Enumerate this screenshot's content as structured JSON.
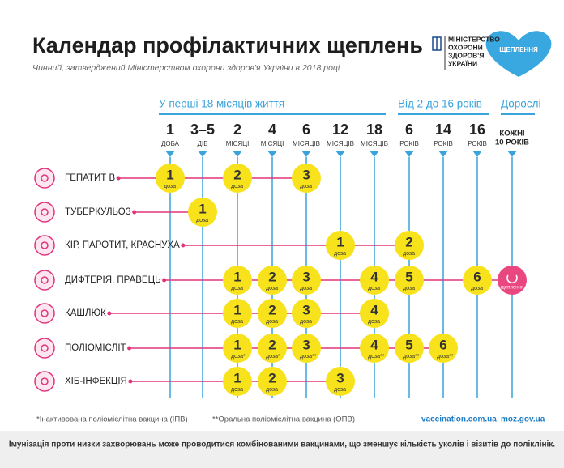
{
  "header": {
    "title": "Календар профілактичних щеплень",
    "subtitle": "Чинний, затверджений Міністерством охорони здоров'я України в 2018 році",
    "ministry": [
      "МІНІСТЕРСТВО",
      "ОХОРОНИ",
      "ЗДОРОВ'Я",
      "УКРАЇНИ"
    ],
    "badge": "ЩЕПЛЕННЯ"
  },
  "groups": [
    {
      "label": "У перші 18 місяців життя",
      "columns": [
        {
          "number": "1",
          "unit": "ДОБА"
        },
        {
          "number": "3–5",
          "unit": "ДІБ"
        },
        {
          "number": "2",
          "unit": "МІСЯЦІ"
        },
        {
          "number": "4",
          "unit": "МІСЯЦІ"
        },
        {
          "number": "6",
          "unit": "МІСЯЦІВ"
        },
        {
          "number": "12",
          "unit": "МІСЯЦІВ"
        },
        {
          "number": "18",
          "unit": "МІСЯЦІВ"
        }
      ]
    },
    {
      "label": "Від 2 до 16 років",
      "columns": [
        {
          "number": "6",
          "unit": "РОКІВ"
        },
        {
          "number": "14",
          "unit": "РОКІВ"
        },
        {
          "number": "16",
          "unit": "РОКІВ"
        }
      ]
    },
    {
      "label": "Дорослі",
      "columns": [
        {
          "lines": [
            "КОЖНІ",
            "10 РОКІВ"
          ]
        }
      ]
    }
  ],
  "rows": [
    {
      "name": "ГЕПАТИТ В",
      "doses": [
        {
          "number": "1",
          "unit": "доза"
        },
        null,
        {
          "number": "2",
          "unit": "доза"
        },
        null,
        {
          "number": "3",
          "unit": "доза"
        },
        null,
        null,
        null,
        null,
        null,
        null
      ]
    },
    {
      "name": "ТУБЕРКУЛЬОЗ",
      "doses": [
        null,
        {
          "number": "1",
          "unit": "доза"
        },
        null,
        null,
        null,
        null,
        null,
        null,
        null,
        null,
        null
      ]
    },
    {
      "name": "КІР, ПАРОТИТ, КРАСНУХА",
      "doses": [
        null,
        null,
        null,
        null,
        null,
        {
          "number": "1",
          "unit": "доза"
        },
        null,
        {
          "number": "2",
          "unit": "доза"
        },
        null,
        null,
        null
      ]
    },
    {
      "name": "ДИФТЕРІЯ, ПРАВЕЦЬ",
      "doses": [
        null,
        null,
        {
          "number": "1",
          "unit": "доза"
        },
        {
          "number": "2",
          "unit": "доза"
        },
        {
          "number": "3",
          "unit": "доза"
        },
        null,
        {
          "number": "4",
          "unit": "доза"
        },
        {
          "number": "5",
          "unit": "доза"
        },
        null,
        {
          "number": "6",
          "unit": "доза"
        },
        {
          "label": "щеплення"
        }
      ]
    },
    {
      "name": "КАШЛЮК",
      "doses": [
        null,
        null,
        {
          "number": "1",
          "unit": "доза"
        },
        {
          "number": "2",
          "unit": "доза"
        },
        {
          "number": "3",
          "unit": "доза"
        },
        null,
        {
          "number": "4",
          "unit": "доза"
        },
        null,
        null,
        null,
        null
      ]
    },
    {
      "name": "ПОЛІОМІЄЛІТ",
      "doses": [
        null,
        null,
        {
          "number": "1",
          "unit": "доза*"
        },
        {
          "number": "2",
          "unit": "доза*"
        },
        {
          "number": "3",
          "unit": "доза**"
        },
        null,
        {
          "number": "4",
          "unit": "доза**"
        },
        {
          "number": "5",
          "unit": "доза**"
        },
        {
          "number": "6",
          "unit": "доза**"
        },
        null,
        null
      ]
    },
    {
      "name": "ХІБ-ІНФЕКЦІЯ",
      "doses": [
        null,
        null,
        {
          "number": "1",
          "unit": "доза"
        },
        {
          "number": "2",
          "unit": "доза"
        },
        null,
        {
          "number": "3",
          "unit": "доза"
        },
        null,
        null,
        null,
        null,
        null
      ]
    }
  ],
  "footer": {
    "notes": [
      "*Інактивована поліомієлітна вакцина (ІПВ)",
      "**Оральна поліомієлітна вакцина (ОПВ)"
    ],
    "links": [
      "vaccination.com.ua",
      "moz.gov.ua"
    ],
    "bottom": "Імунізація проти низки захворювань може проводитися комбінованими вакцинами, що зменшує кількість уколів і візитів до поліклінік."
  }
}
